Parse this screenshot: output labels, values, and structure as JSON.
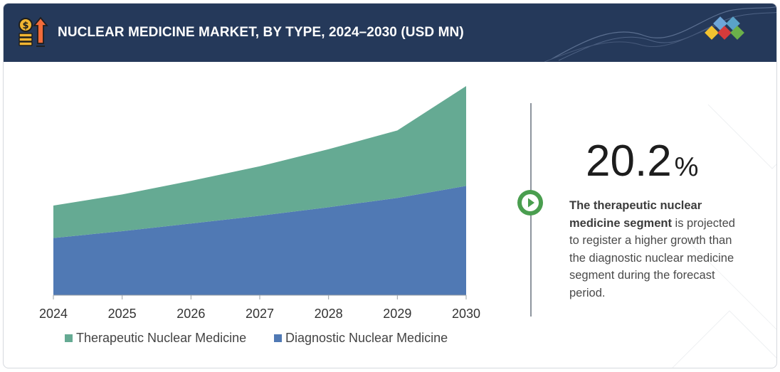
{
  "header": {
    "title": "NUCLEAR MEDICINE MARKET, BY TYPE, 2024–2030 (USD MN)",
    "icon": "money-growth-icon",
    "background": "#25395a"
  },
  "chart_data": {
    "type": "area",
    "stacked": true,
    "categories": [
      "2024",
      "2025",
      "2026",
      "2027",
      "2028",
      "2029",
      "2030"
    ],
    "series": [
      {
        "name": "Diagnostic Nuclear Medicine",
        "color": "#5079b4",
        "values": [
          67,
          75,
          84,
          93,
          103,
          114,
          128
        ]
      },
      {
        "name": "Therapeutic Nuclear Medicine",
        "color": "#65aa93",
        "values": [
          38,
          43,
          50,
          58,
          68,
          79,
          117
        ]
      }
    ],
    "ylim": [
      0,
      250
    ],
    "grid": false,
    "legend_position": "bottom"
  },
  "legend": {
    "items": [
      {
        "label": "Therapeutic Nuclear Medicine",
        "color": "#65aa93"
      },
      {
        "label": "Diagnostic Nuclear Medicine",
        "color": "#5079b4"
      }
    ]
  },
  "highlight": {
    "value": "20.2",
    "unit": "%",
    "text_bold": "The therapeutic nuclear medicine segment",
    "text_rest": " is projected to register a higher growth than the diagnostic nuclear medicine segment during the forecast period."
  }
}
